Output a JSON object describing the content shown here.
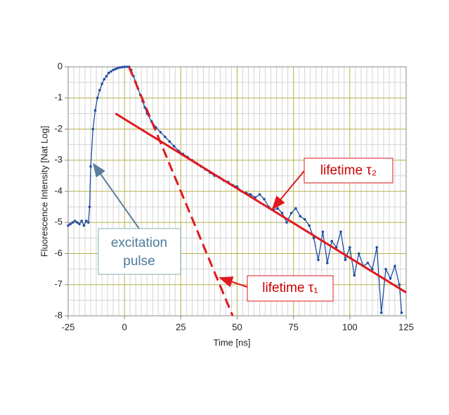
{
  "chart_data": {
    "type": "line",
    "x_label": "Time [ns]",
    "y_label": "Fluorescence Intensity [Nat Log]",
    "xlim": [
      -25,
      125
    ],
    "xticks": [
      -25,
      0,
      25,
      50,
      75,
      100,
      125
    ],
    "ylim": [
      -8,
      0
    ],
    "yticks": [
      0,
      -1,
      -2,
      -3,
      -4,
      -5,
      -6,
      -7,
      -8
    ],
    "grid": true,
    "series": [
      {
        "color": "#1f4ea3",
        "x": [
          -25,
          -24,
          -23,
          -22,
          -21,
          -20,
          -19,
          -18,
          -17,
          -16,
          -15.5,
          -15,
          -14,
          -13,
          -12,
          -11,
          -10,
          -9,
          -8,
          -7,
          -6,
          -5,
          -4,
          -3,
          -2,
          -1,
          0,
          1,
          2,
          3,
          4,
          5,
          6,
          7,
          8,
          9,
          10,
          12,
          14,
          16,
          18,
          20,
          22,
          24,
          26,
          28,
          30,
          32,
          34,
          36,
          38,
          40,
          42,
          44,
          46,
          48,
          50,
          52,
          54,
          56,
          58,
          60,
          62,
          64,
          66,
          68,
          70,
          72,
          74,
          76,
          78,
          80,
          82,
          84,
          86,
          88,
          90,
          92,
          94,
          96,
          98,
          100,
          102,
          104,
          106,
          108,
          110,
          112,
          114,
          116,
          118,
          120,
          122,
          123
        ],
        "values": [
          -5.1,
          -5.05,
          -5.0,
          -4.95,
          -5.0,
          -5.05,
          -4.95,
          -5.1,
          -4.95,
          -5.0,
          -4.5,
          -3.2,
          -2.0,
          -1.4,
          -1.0,
          -0.75,
          -0.55,
          -0.4,
          -0.3,
          -0.2,
          -0.15,
          -0.1,
          -0.07,
          -0.04,
          -0.02,
          -0.01,
          0,
          0,
          0,
          -0.1,
          -0.3,
          -0.5,
          -0.7,
          -0.9,
          -1.1,
          -1.3,
          -1.5,
          -1.75,
          -1.95,
          -2.1,
          -2.25,
          -2.4,
          -2.55,
          -2.7,
          -2.8,
          -2.9,
          -3.0,
          -3.1,
          -3.2,
          -3.3,
          -3.4,
          -3.5,
          -3.55,
          -3.65,
          -3.7,
          -3.8,
          -3.85,
          -4.0,
          -4.05,
          -4.1,
          -4.2,
          -4.1,
          -4.25,
          -4.5,
          -4.6,
          -4.55,
          -4.7,
          -5.0,
          -4.7,
          -4.55,
          -4.8,
          -4.9,
          -5.1,
          -5.5,
          -6.2,
          -5.3,
          -6.3,
          -5.6,
          -5.8,
          -5.3,
          -6.2,
          -5.8,
          -6.7,
          -6.0,
          -6.4,
          -6.3,
          -6.5,
          -5.8,
          -7.9,
          -6.5,
          -6.8,
          -6.4,
          -7.0,
          -7.9
        ]
      }
    ],
    "fits": [
      {
        "color": "#e0191f",
        "dash": false,
        "x": [
          -4,
          125
        ],
        "values": [
          -1.5,
          -7.25
        ]
      },
      {
        "color": "#e0191f",
        "dash": true,
        "x": [
          2,
          48
        ],
        "values": [
          0,
          -8
        ]
      }
    ],
    "annotations": [
      {
        "lines": [
          "excitation",
          "pulse"
        ]
      },
      {
        "text": "lifetime τ₂"
      },
      {
        "text": "lifetime τ₁"
      }
    ]
  }
}
